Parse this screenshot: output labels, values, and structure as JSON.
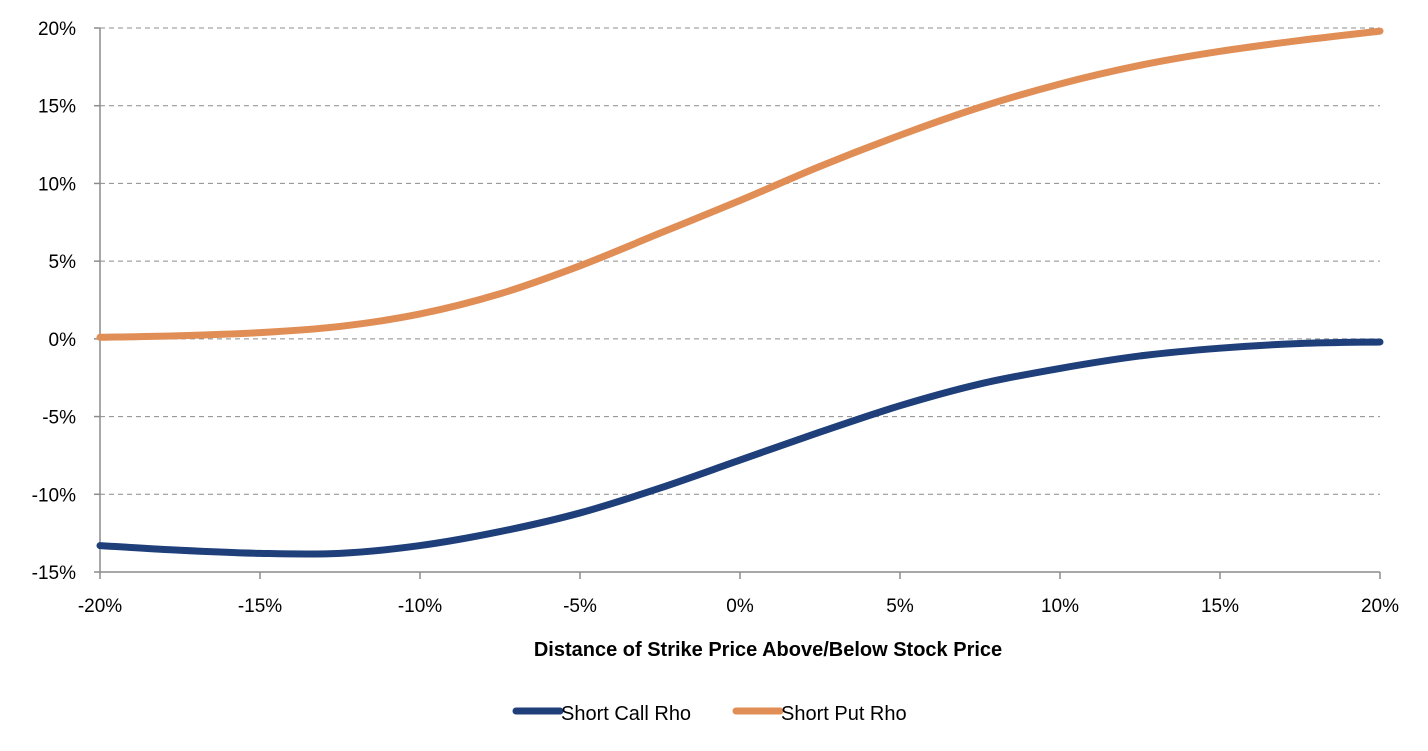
{
  "chart_data": {
    "type": "line",
    "title": "",
    "xlabel": "Distance of Strike Price Above/Below Stock Price",
    "ylabel": "",
    "xlim": [
      -0.2,
      0.2
    ],
    "ylim": [
      -0.15,
      0.2
    ],
    "x_ticks": [
      -0.2,
      -0.15,
      -0.1,
      -0.05,
      0.0,
      0.05,
      0.1,
      0.15,
      0.2
    ],
    "x_tick_labels": [
      "-20%",
      "-15%",
      "-10%",
      "-5%",
      "0%",
      "5%",
      "10%",
      "15%",
      "20%"
    ],
    "y_ticks": [
      -0.15,
      -0.1,
      -0.05,
      0.0,
      0.05,
      0.1,
      0.15,
      0.2
    ],
    "y_tick_labels": [
      "-15%",
      "-10%",
      "-5%",
      "0%",
      "5%",
      "10%",
      "15%",
      "20%"
    ],
    "grid": "horizontal dashed",
    "legend_position": "bottom",
    "x": [
      -0.2,
      -0.175,
      -0.15,
      -0.125,
      -0.1,
      -0.075,
      -0.05,
      -0.025,
      0.0,
      0.025,
      0.05,
      0.075,
      0.1,
      0.125,
      0.15,
      0.175,
      0.2
    ],
    "series": [
      {
        "name": "Short Call Rho",
        "color": "#1f3f7a",
        "values": [
          -0.133,
          -0.136,
          -0.138,
          -0.138,
          -0.133,
          -0.124,
          -0.112,
          -0.096,
          -0.078,
          -0.06,
          -0.043,
          -0.029,
          -0.019,
          -0.011,
          -0.006,
          -0.003,
          -0.002
        ]
      },
      {
        "name": "Short Put Rho",
        "color": "#e08e55",
        "values": [
          0.001,
          0.002,
          0.004,
          0.008,
          0.016,
          0.029,
          0.047,
          0.068,
          0.089,
          0.111,
          0.131,
          0.149,
          0.164,
          0.176,
          0.185,
          0.192,
          0.198
        ]
      }
    ]
  }
}
